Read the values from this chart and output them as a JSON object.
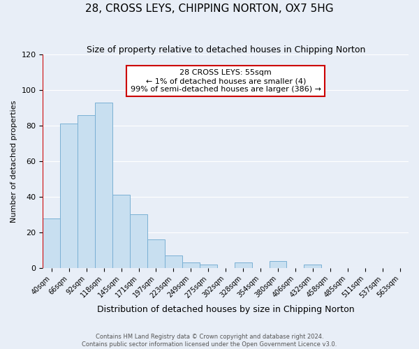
{
  "title": "28, CROSS LEYS, CHIPPING NORTON, OX7 5HG",
  "subtitle": "Size of property relative to detached houses in Chipping Norton",
  "xlabel": "Distribution of detached houses by size in Chipping Norton",
  "ylabel": "Number of detached properties",
  "bar_labels": [
    "40sqm",
    "66sqm",
    "92sqm",
    "118sqm",
    "145sqm",
    "171sqm",
    "197sqm",
    "223sqm",
    "249sqm",
    "275sqm",
    "302sqm",
    "328sqm",
    "354sqm",
    "380sqm",
    "406sqm",
    "432sqm",
    "458sqm",
    "485sqm",
    "511sqm",
    "537sqm",
    "563sqm"
  ],
  "bar_values": [
    28,
    81,
    86,
    93,
    41,
    30,
    16,
    7,
    3,
    2,
    0,
    3,
    0,
    4,
    0,
    2,
    0,
    0,
    0,
    0,
    0
  ],
  "bar_color": "#c8dff0",
  "bar_edge_color": "#7ab0d4",
  "ylim": [
    0,
    120
  ],
  "yticks": [
    0,
    20,
    40,
    60,
    80,
    100,
    120
  ],
  "annotation_box_text": "28 CROSS LEYS: 55sqm\n← 1% of detached houses are smaller (4)\n99% of semi-detached houses are larger (386) →",
  "annotation_box_color": "#ffffff",
  "annotation_box_edge_color": "#cc0000",
  "vline_color": "#cc0000",
  "footer_line1": "Contains HM Land Registry data © Crown copyright and database right 2024.",
  "footer_line2": "Contains public sector information licensed under the Open Government Licence v3.0.",
  "background_color": "#e8eef7",
  "grid_color": "#ffffff"
}
